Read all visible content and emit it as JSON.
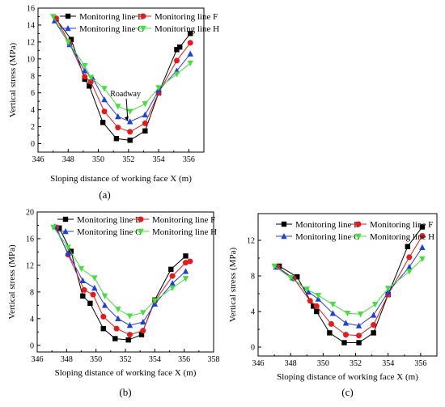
{
  "series_styles": [
    {
      "color": "#000000",
      "marker": "square"
    },
    {
      "color": "#e41a1c",
      "marker": "circle"
    },
    {
      "color": "#1f3fd8",
      "marker": "triangle-up"
    },
    {
      "color": "#44e03a",
      "marker": "triangle-down"
    }
  ],
  "chart_data": [
    {
      "type": "line",
      "panel_label": "(a)",
      "xlabel": "Sloping distance of working face X (m)",
      "ylabel": "Vertical stress (MPa)",
      "xlim": [
        346,
        357
      ],
      "ylim": [
        -1,
        16
      ],
      "xticks": [
        346,
        348,
        350,
        352,
        354,
        356
      ],
      "yticks": [
        0,
        2,
        4,
        6,
        8,
        10,
        12,
        14,
        16
      ],
      "legend_position": "top-center",
      "annotation": {
        "text": "Roadway",
        "x": 352,
        "y": 2.5,
        "text_x": 351.8,
        "text_y": 5.6
      },
      "series": [
        {
          "name": "Monitoring line E",
          "x": [
            347.2,
            348.2,
            349.1,
            349.4,
            350.3,
            351.2,
            352.1,
            353.1,
            354.0,
            355.2,
            355.4,
            356.1
          ],
          "y": [
            14.7,
            12.3,
            7.6,
            6.8,
            2.5,
            0.6,
            0.4,
            1.5,
            6.0,
            11.1,
            11.4,
            13.0
          ]
        },
        {
          "name": "Monitoring line F",
          "x": [
            347.2,
            348.1,
            349.1,
            349.5,
            350.4,
            351.3,
            352.1,
            353.1,
            354.0,
            355.2,
            356.1
          ],
          "y": [
            14.8,
            11.8,
            7.9,
            7.3,
            3.8,
            1.9,
            1.4,
            2.4,
            6.0,
            9.8,
            11.9
          ]
        },
        {
          "name": "Monitoring line G",
          "x": [
            347.1,
            348.1,
            349.1,
            349.6,
            350.4,
            351.3,
            352.1,
            353.1,
            354.0,
            355.2,
            356.1
          ],
          "y": [
            14.5,
            11.7,
            8.6,
            7.8,
            5.2,
            3.2,
            2.6,
            3.4,
            6.3,
            8.6,
            10.6
          ]
        },
        {
          "name": "Monitoring line H",
          "x": [
            347.0,
            348.0,
            349.1,
            349.5,
            350.4,
            351.3,
            352.1,
            353.1,
            354.0,
            355.2,
            356.1
          ],
          "y": [
            15.0,
            12.0,
            9.2,
            7.8,
            6.5,
            4.4,
            3.8,
            4.7,
            6.6,
            8.2,
            9.5
          ]
        }
      ]
    },
    {
      "type": "line",
      "panel_label": "(b)",
      "xlabel": "Sloping distance of working face X (m)",
      "ylabel": "Vertical stress (MPa)",
      "xlim": [
        346,
        358
      ],
      "ylim": [
        -1,
        20
      ],
      "xticks": [
        346,
        348,
        350,
        352,
        354,
        356,
        358
      ],
      "yticks": [
        0,
        4,
        8,
        12,
        16,
        20
      ],
      "legend_position": "top-center",
      "series": [
        {
          "name": "Monitoring line E",
          "x": [
            347.5,
            348.3,
            349.1,
            349.6,
            350.5,
            351.3,
            352.2,
            353.1,
            354.0,
            355.1,
            356.1
          ],
          "y": [
            17.6,
            14.1,
            7.4,
            6.3,
            2.5,
            1.0,
            0.8,
            1.6,
            6.8,
            11.4,
            13.4
          ]
        },
        {
          "name": "Monitoring line F",
          "x": [
            347.3,
            348.1,
            349.2,
            349.8,
            350.5,
            351.4,
            352.3,
            353.2,
            354.0,
            355.2,
            356.1,
            356.4
          ],
          "y": [
            17.7,
            13.6,
            8.3,
            7.6,
            4.3,
            2.5,
            1.6,
            2.2,
            6.6,
            10.4,
            12.4,
            12.6
          ]
        },
        {
          "name": "Monitoring line G",
          "x": [
            347.2,
            348.1,
            349.1,
            349.9,
            350.6,
            351.5,
            352.3,
            353.2,
            354.0,
            355.2,
            356.1
          ],
          "y": [
            17.8,
            13.8,
            9.7,
            8.6,
            6.0,
            4.0,
            3.0,
            3.5,
            6.2,
            9.3,
            11.1
          ]
        },
        {
          "name": "Monitoring line H",
          "x": [
            347.1,
            348.1,
            349.0,
            349.9,
            350.6,
            351.5,
            352.3,
            353.2,
            354.0,
            355.2,
            356.1
          ],
          "y": [
            17.7,
            14.7,
            11.5,
            10.1,
            7.4,
            5.4,
            4.4,
            4.9,
            6.7,
            8.6,
            10.0
          ]
        }
      ]
    },
    {
      "type": "line",
      "panel_label": "(c)",
      "xlabel": "Sloping distance of working face X (m)",
      "ylabel": "Vertical stress (MPa)",
      "xlim": [
        346,
        357
      ],
      "ylim": [
        -1,
        15
      ],
      "xticks": [
        346,
        348,
        350,
        352,
        354,
        356
      ],
      "yticks": [
        0,
        4,
        8,
        12
      ],
      "legend_position": "top-center",
      "series": [
        {
          "name": "Monitoring line E",
          "x": [
            347.3,
            348.4,
            349.4,
            349.6,
            350.4,
            351.3,
            352.2,
            353.1,
            354.0,
            355.2,
            356.1
          ],
          "y": [
            9.1,
            7.9,
            4.6,
            4.0,
            1.6,
            0.5,
            0.5,
            1.6,
            5.9,
            11.3,
            13.5
          ]
        },
        {
          "name": "Monitoring line F",
          "x": [
            347.2,
            348.2,
            349.2,
            349.6,
            350.5,
            351.4,
            352.2,
            353.1,
            354.0,
            355.3,
            356.1
          ],
          "y": [
            9.0,
            7.7,
            5.2,
            4.6,
            2.6,
            1.4,
            1.3,
            2.5,
            5.9,
            10.1,
            12.5
          ]
        },
        {
          "name": "Monitoring line G",
          "x": [
            347.1,
            348.1,
            349.1,
            349.7,
            350.6,
            351.4,
            352.2,
            353.1,
            354.0,
            355.3,
            356.1
          ],
          "y": [
            9.0,
            7.8,
            6.2,
            5.4,
            3.8,
            2.7,
            2.4,
            3.6,
            6.2,
            9.0,
            11.2
          ]
        },
        {
          "name": "Monitoring line H",
          "x": [
            347.0,
            348.0,
            349.0,
            349.7,
            350.6,
            351.5,
            352.3,
            353.2,
            354.0,
            355.3,
            356.1
          ],
          "y": [
            9.1,
            7.8,
            6.5,
            5.8,
            4.8,
            3.8,
            3.7,
            4.8,
            6.6,
            8.5,
            9.9
          ]
        }
      ]
    }
  ]
}
